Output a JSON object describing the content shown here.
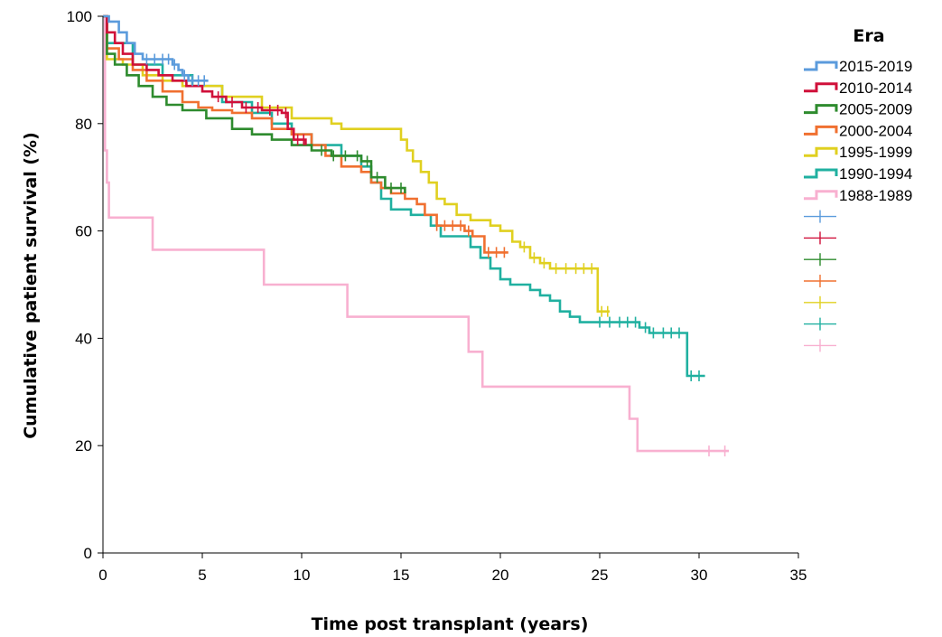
{
  "chart_data": {
    "type": "line",
    "xlabel": "Time post transplant (years)",
    "ylabel": "Cumulative patient survival (%)",
    "xlim": [
      0,
      35
    ],
    "ylim": [
      0,
      100
    ],
    "xticks": [
      0,
      5,
      10,
      15,
      20,
      25,
      30,
      35
    ],
    "yticks": [
      0,
      20,
      40,
      60,
      80,
      100
    ],
    "grid": false,
    "legend": {
      "title": "Era",
      "placement": "right"
    },
    "step": true,
    "censor_markers": true,
    "series": [
      {
        "name": "2015-2019",
        "color": "#5b9bdc",
        "points": [
          [
            0,
            100
          ],
          [
            0.3,
            99
          ],
          [
            0.8,
            97
          ],
          [
            1.2,
            95
          ],
          [
            1.6,
            93
          ],
          [
            2.0,
            92
          ],
          [
            3.5,
            91
          ],
          [
            3.8,
            90
          ],
          [
            4.0,
            89
          ],
          [
            4.3,
            88
          ],
          [
            5.3,
            88
          ]
        ],
        "censored": [
          2.2,
          2.6,
          3.0,
          3.3,
          3.6,
          4.1,
          4.5,
          4.8,
          5.1
        ]
      },
      {
        "name": "2010-2014",
        "color": "#d0103a",
        "points": [
          [
            0,
            100
          ],
          [
            0.2,
            97
          ],
          [
            0.6,
            95
          ],
          [
            1.0,
            93
          ],
          [
            1.5,
            91
          ],
          [
            2.2,
            90
          ],
          [
            2.8,
            89
          ],
          [
            3.5,
            88
          ],
          [
            4.2,
            87
          ],
          [
            5.0,
            86
          ],
          [
            5.5,
            85
          ],
          [
            6.2,
            84
          ],
          [
            7.0,
            83
          ],
          [
            8.0,
            82.5
          ],
          [
            9.0,
            82
          ],
          [
            9.3,
            79
          ],
          [
            9.6,
            77
          ],
          [
            10.2,
            76
          ]
        ],
        "censored": [
          5.8,
          6.5,
          7.2,
          7.8,
          8.4,
          8.8,
          9.2,
          9.8,
          10.1
        ]
      },
      {
        "name": "2005-2009",
        "color": "#2e8b2e",
        "points": [
          [
            0,
            100
          ],
          [
            0.2,
            93
          ],
          [
            0.6,
            91
          ],
          [
            1.2,
            89
          ],
          [
            1.8,
            87
          ],
          [
            2.5,
            85
          ],
          [
            3.2,
            83.5
          ],
          [
            4.0,
            82.5
          ],
          [
            5.2,
            81
          ],
          [
            6.5,
            79
          ],
          [
            7.5,
            78
          ],
          [
            8.5,
            77
          ],
          [
            9.5,
            76
          ],
          [
            10.5,
            75
          ],
          [
            11.5,
            74
          ],
          [
            13.0,
            73
          ],
          [
            13.5,
            70
          ],
          [
            14.2,
            68
          ],
          [
            15.2,
            67
          ]
        ],
        "censored": [
          11.0,
          11.6,
          12.2,
          12.8,
          13.3,
          13.8,
          14.5,
          15.0
        ]
      },
      {
        "name": "2000-2004",
        "color": "#f07030",
        "points": [
          [
            0,
            100
          ],
          [
            0.2,
            94
          ],
          [
            0.8,
            92
          ],
          [
            1.5,
            90
          ],
          [
            2.2,
            88
          ],
          [
            3.0,
            86
          ],
          [
            4.0,
            84
          ],
          [
            4.8,
            83
          ],
          [
            5.5,
            82.5
          ],
          [
            6.5,
            82
          ],
          [
            7.5,
            81
          ],
          [
            8.5,
            79
          ],
          [
            9.5,
            78
          ],
          [
            10.5,
            76
          ],
          [
            11.2,
            74
          ],
          [
            12.0,
            72
          ],
          [
            13.0,
            71
          ],
          [
            13.5,
            69
          ],
          [
            14.0,
            68
          ],
          [
            14.5,
            67
          ],
          [
            15.2,
            66
          ],
          [
            15.8,
            65
          ],
          [
            16.2,
            63
          ],
          [
            16.8,
            61
          ],
          [
            18.2,
            60
          ],
          [
            18.6,
            59
          ],
          [
            19.2,
            56
          ],
          [
            20.4,
            56
          ]
        ],
        "censored": [
          16.8,
          17.2,
          17.6,
          18.0,
          18.4,
          19.4,
          19.8,
          20.2
        ]
      },
      {
        "name": "1995-1999",
        "color": "#e0d020",
        "points": [
          [
            0,
            100
          ],
          [
            0.2,
            92
          ],
          [
            1.0,
            91
          ],
          [
            2.0,
            89
          ],
          [
            3.0,
            88
          ],
          [
            4.0,
            87
          ],
          [
            6.0,
            85
          ],
          [
            8.0,
            83
          ],
          [
            9.5,
            81
          ],
          [
            11.5,
            80
          ],
          [
            12.0,
            79
          ],
          [
            14.5,
            79
          ],
          [
            15.0,
            77
          ],
          [
            15.3,
            75
          ],
          [
            15.6,
            73
          ],
          [
            16.0,
            71
          ],
          [
            16.4,
            69
          ],
          [
            16.8,
            66
          ],
          [
            17.2,
            65
          ],
          [
            17.8,
            63
          ],
          [
            18.5,
            62
          ],
          [
            19.5,
            61
          ],
          [
            20.0,
            60
          ],
          [
            20.6,
            58
          ],
          [
            21.0,
            57
          ],
          [
            21.5,
            55
          ],
          [
            22.0,
            54
          ],
          [
            22.5,
            53
          ],
          [
            24.8,
            53
          ],
          [
            24.9,
            45
          ],
          [
            25.5,
            45
          ]
        ],
        "censored": [
          21.2,
          21.7,
          22.2,
          22.8,
          23.3,
          23.8,
          24.2,
          24.6,
          25.1,
          25.4
        ]
      },
      {
        "name": "1990-1994",
        "color": "#20b0a0",
        "points": [
          [
            0,
            100
          ],
          [
            0.2,
            95
          ],
          [
            1.5,
            91
          ],
          [
            3.0,
            89
          ],
          [
            4.5,
            87
          ],
          [
            6.0,
            84
          ],
          [
            7.5,
            82
          ],
          [
            8.5,
            80
          ],
          [
            9.5,
            78
          ],
          [
            10.5,
            76
          ],
          [
            12.0,
            74
          ],
          [
            13.0,
            72
          ],
          [
            13.5,
            69
          ],
          [
            14.0,
            66
          ],
          [
            14.5,
            64
          ],
          [
            15.5,
            63
          ],
          [
            16.5,
            61
          ],
          [
            17.0,
            59
          ],
          [
            18.5,
            57
          ],
          [
            19.0,
            55
          ],
          [
            19.5,
            53
          ],
          [
            20.0,
            51
          ],
          [
            20.5,
            50
          ],
          [
            21.5,
            49
          ],
          [
            22.0,
            48
          ],
          [
            22.5,
            47
          ],
          [
            23.0,
            45
          ],
          [
            23.5,
            44
          ],
          [
            24.0,
            43
          ],
          [
            26.5,
            43
          ],
          [
            27.0,
            42
          ],
          [
            27.5,
            41
          ],
          [
            29.3,
            41
          ],
          [
            29.4,
            33
          ],
          [
            30.3,
            33
          ]
        ],
        "censored": [
          25.0,
          25.5,
          26.0,
          26.4,
          26.8,
          27.3,
          27.7,
          28.2,
          28.6,
          29.0,
          29.6,
          30.0
        ]
      },
      {
        "name": "1988-1989",
        "color": "#f8b0d0",
        "points": [
          [
            0,
            100
          ],
          [
            0.1,
            75
          ],
          [
            0.2,
            69
          ],
          [
            0.3,
            62.5
          ],
          [
            2.4,
            62.5
          ],
          [
            2.5,
            56.5
          ],
          [
            8.0,
            56.5
          ],
          [
            8.1,
            50
          ],
          [
            12.2,
            50
          ],
          [
            12.3,
            44
          ],
          [
            18.3,
            44
          ],
          [
            18.4,
            37.5
          ],
          [
            19.0,
            37.5
          ],
          [
            19.1,
            31
          ],
          [
            26.4,
            31
          ],
          [
            26.5,
            25
          ],
          [
            26.8,
            25
          ],
          [
            26.9,
            19
          ],
          [
            31.5,
            19
          ]
        ],
        "censored": [
          30.5,
          31.3
        ]
      }
    ]
  }
}
